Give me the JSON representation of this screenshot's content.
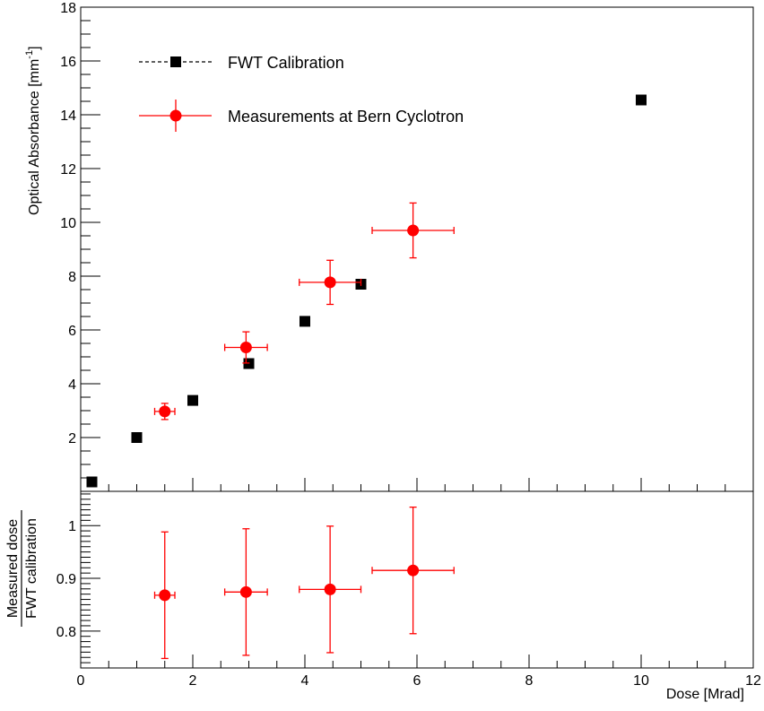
{
  "chart_data": [
    {
      "type": "scatter",
      "ylabel": "Optical Absorbance [mm",
      "ylabel_sup": "-1",
      "ylabel_end": "]",
      "xlim": [
        0,
        12
      ],
      "ylim": [
        0,
        18
      ],
      "y_ticks": [
        2,
        4,
        6,
        8,
        10,
        12,
        14,
        16,
        18
      ],
      "legend_position": "top-left",
      "series": [
        {
          "name": "FWT Calibration",
          "marker": "square",
          "color": "#000000",
          "x": [
            0.2,
            1.0,
            2.0,
            3.0,
            4.0,
            5.0,
            10.0
          ],
          "y": [
            0.35,
            2.0,
            3.38,
            4.75,
            6.32,
            7.7,
            14.55
          ]
        },
        {
          "name": "Measurements at Bern Cyclotron",
          "marker": "circle",
          "color": "#ff0000",
          "x": [
            1.5,
            2.95,
            4.45,
            5.93
          ],
          "x_err": [
            0.18,
            0.38,
            0.55,
            0.73
          ],
          "y": [
            2.97,
            5.35,
            7.77,
            9.7
          ],
          "y_err": [
            0.3,
            0.58,
            0.82,
            1.02
          ]
        }
      ]
    },
    {
      "type": "scatter",
      "ylabel_top": "Measured dose",
      "ylabel_bottom": "FWT calibration",
      "xlabel": "Dose [Mrad]",
      "xlim": [
        0,
        12
      ],
      "ylim": [
        0.73,
        1.065
      ],
      "x_ticks": [
        0,
        2,
        4,
        6,
        8,
        10,
        12
      ],
      "y_ticks": [
        0.8,
        0.9,
        1
      ],
      "series": [
        {
          "marker": "circle",
          "color": "#ff0000",
          "x": [
            1.5,
            2.95,
            4.45,
            5.93
          ],
          "x_err": [
            0.18,
            0.38,
            0.55,
            0.73
          ],
          "y": [
            0.868,
            0.874,
            0.879,
            0.915
          ],
          "y_err": [
            0.12,
            0.12,
            0.12,
            0.12
          ]
        }
      ]
    }
  ]
}
